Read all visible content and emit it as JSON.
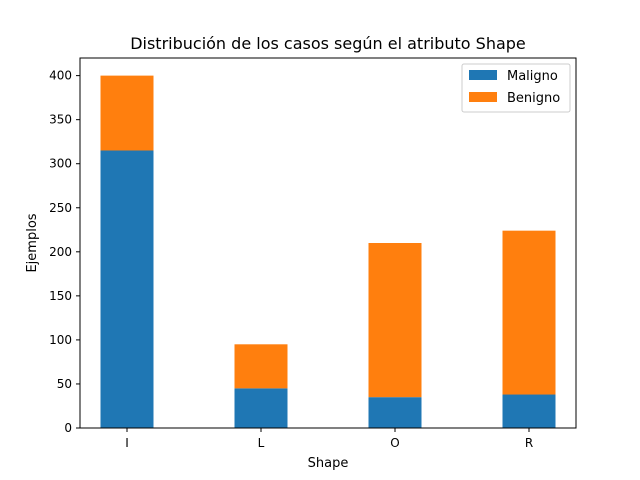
{
  "chart_data": {
    "type": "bar",
    "stacked": true,
    "title": "Distribución de los casos según el atributo Shape",
    "xlabel": "Shape",
    "ylabel": "Ejemplos",
    "categories": [
      "I",
      "L",
      "O",
      "R"
    ],
    "series": [
      {
        "name": "Maligno",
        "values": [
          315,
          45,
          35,
          38
        ],
        "color": "#1f77b4"
      },
      {
        "name": "Benigno",
        "values": [
          85,
          50,
          175,
          186
        ],
        "color": "#ff7f0e"
      }
    ],
    "ylim": [
      0,
      420
    ],
    "yticks": [
      0,
      50,
      100,
      150,
      200,
      250,
      300,
      350,
      400
    ],
    "grid": false,
    "legend": "top-right"
  }
}
